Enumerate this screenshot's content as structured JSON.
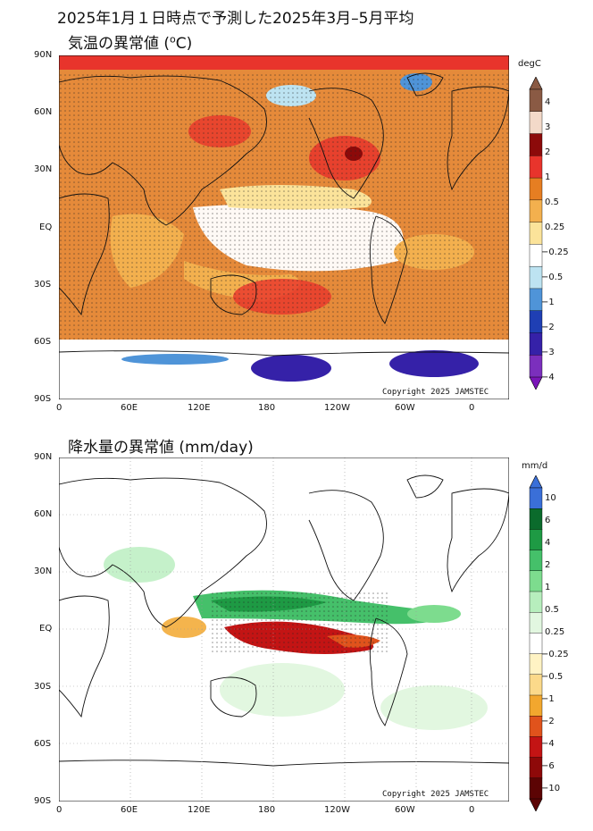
{
  "main_title": "2025年1月１日時点で予測した2025年3月–5月平均",
  "panels": [
    {
      "id": "temperature",
      "title": "気温の異常値 (",
      "title_sup": "o",
      "title_tail": "C)",
      "unit": "degC",
      "copyright": "Copyright  2025  JAMSTEC",
      "lat_ticks": [
        "90N",
        "60N",
        "30N",
        "EQ",
        "30S",
        "60S",
        "90S"
      ],
      "lon_ticks": [
        "0",
        "60E",
        "120E",
        "180",
        "120W",
        "60W",
        "0"
      ],
      "colorbar": {
        "labels": [
          "4",
          "3",
          "2",
          "1",
          "0.5",
          "0.25",
          "−0.25",
          "−0.5",
          "−1",
          "−2",
          "−3",
          "−4"
        ],
        "colors": [
          "#8a5a44",
          "#f3d9c9",
          "#8c0a0a",
          "#e8342c",
          "#e67e22",
          "#f3b04e",
          "#fbe39a",
          "#ffffff",
          "#bde3f1",
          "#4f94d8",
          "#1f3fb4",
          "#3521a8",
          "#7b2fbd"
        ],
        "tip_top": "#8a5a44",
        "tip_bottom": "#7a16b8"
      }
    },
    {
      "id": "precipitation",
      "title": "降水量の異常値 (mm/day)",
      "unit": "mm/d",
      "copyright": "Copyright  2025  JAMSTEC",
      "lat_ticks": [
        "90N",
        "60N",
        "30N",
        "EQ",
        "30S",
        "60S",
        "90S"
      ],
      "lon_ticks": [
        "0",
        "60E",
        "120E",
        "180",
        "120W",
        "60W",
        "0"
      ],
      "colorbar": {
        "labels": [
          "10",
          "6",
          "4",
          "2",
          "1",
          "0.5",
          "0.25",
          "−0.25",
          "−0.5",
          "−1",
          "−2",
          "−4",
          "−6",
          "−10"
        ],
        "colors": [
          "#3a6fd8",
          "#0b6b2c",
          "#1e9a44",
          "#45c06a",
          "#7ddc8e",
          "#b7eebd",
          "#e2f7e0",
          "#ffffff",
          "#fff3c4",
          "#fbd98a",
          "#f2a72e",
          "#e0531c",
          "#c31414",
          "#8e0909",
          "#5c0404"
        ],
        "tip_top": "#3a6fd8",
        "tip_bottom": "#5c0404"
      }
    }
  ]
}
